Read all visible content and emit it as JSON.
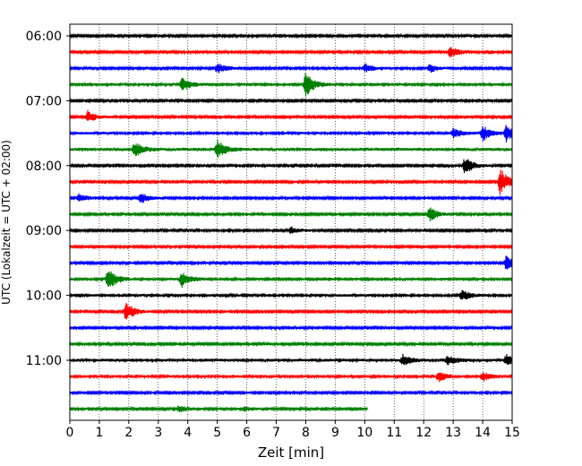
{
  "chart_data": {
    "type": "line",
    "xlabel": "Zeit  [min]",
    "ylabel": "UTC (Lokalzeit = UTC + 02:00)",
    "xlim": [
      0,
      15
    ],
    "x_ticks": [
      "0",
      "1",
      "2",
      "3",
      "4",
      "5",
      "6",
      "7",
      "8",
      "9",
      "10",
      "11",
      "12",
      "13",
      "14",
      "15"
    ],
    "y_tick_labels": [
      "06:00",
      "07:00",
      "08:00",
      "09:00",
      "10:00",
      "11:00"
    ],
    "grid": "vertical dotted at every minute",
    "trace_interval_min": 15,
    "colors": [
      "#000000",
      "#ff0000",
      "#0000ff",
      "#008000"
    ],
    "traces": [
      {
        "start": "06:00",
        "color": "#000000",
        "end_min": 15,
        "amp": 0.12,
        "events": []
      },
      {
        "start": "06:15",
        "color": "#ff0000",
        "end_min": 15,
        "amp": 0.12,
        "events": [
          {
            "t": 12.9,
            "a": 0.7
          }
        ]
      },
      {
        "start": "06:30",
        "color": "#0000ff",
        "end_min": 15,
        "amp": 0.12,
        "events": [
          {
            "t": 5.0,
            "a": 0.6
          },
          {
            "t": 10.0,
            "a": 0.5
          },
          {
            "t": 12.2,
            "a": 0.5
          }
        ]
      },
      {
        "start": "06:45",
        "color": "#008000",
        "end_min": 15,
        "amp": 0.14,
        "events": [
          {
            "t": 3.8,
            "a": 0.8
          },
          {
            "t": 8.0,
            "a": 1.4
          }
        ]
      },
      {
        "start": "07:00",
        "color": "#000000",
        "end_min": 15,
        "amp": 0.12,
        "events": []
      },
      {
        "start": "07:15",
        "color": "#ff0000",
        "end_min": 15,
        "amp": 0.12,
        "events": [
          {
            "t": 0.6,
            "a": 0.7
          }
        ]
      },
      {
        "start": "07:30",
        "color": "#0000ff",
        "end_min": 15,
        "amp": 0.14,
        "events": [
          {
            "t": 13.0,
            "a": 0.6
          },
          {
            "t": 14.0,
            "a": 0.9
          },
          {
            "t": 14.8,
            "a": 1.0
          }
        ]
      },
      {
        "start": "07:45",
        "color": "#008000",
        "end_min": 15,
        "amp": 0.18,
        "events": [
          {
            "t": 2.2,
            "a": 0.8
          },
          {
            "t": 5.0,
            "a": 1.0
          }
        ]
      },
      {
        "start": "08:00",
        "color": "#000000",
        "end_min": 15,
        "amp": 0.12,
        "events": [
          {
            "t": 13.4,
            "a": 1.0
          }
        ]
      },
      {
        "start": "08:15",
        "color": "#ff0000",
        "end_min": 15,
        "amp": 0.12,
        "events": [
          {
            "t": 14.6,
            "a": 1.6
          }
        ]
      },
      {
        "start": "08:30",
        "color": "#0000ff",
        "end_min": 15,
        "amp": 0.12,
        "events": [
          {
            "t": 0.3,
            "a": 0.5
          },
          {
            "t": 2.4,
            "a": 0.6
          }
        ]
      },
      {
        "start": "08:45",
        "color": "#008000",
        "end_min": 15,
        "amp": 0.12,
        "events": [
          {
            "t": 12.2,
            "a": 0.8
          }
        ]
      },
      {
        "start": "09:00",
        "color": "#000000",
        "end_min": 15,
        "amp": 0.12,
        "events": [
          {
            "t": 7.5,
            "a": 0.4
          }
        ]
      },
      {
        "start": "09:15",
        "color": "#ff0000",
        "end_min": 15,
        "amp": 0.12,
        "events": []
      },
      {
        "start": "09:30",
        "color": "#0000ff",
        "end_min": 15,
        "amp": 0.12,
        "events": [
          {
            "t": 14.8,
            "a": 0.8
          }
        ]
      },
      {
        "start": "09:45",
        "color": "#008000",
        "end_min": 15,
        "amp": 0.14,
        "events": [
          {
            "t": 1.3,
            "a": 1.3
          },
          {
            "t": 3.8,
            "a": 0.9
          }
        ]
      },
      {
        "start": "10:00",
        "color": "#000000",
        "end_min": 15,
        "amp": 0.14,
        "events": [
          {
            "t": 13.3,
            "a": 0.6
          }
        ]
      },
      {
        "start": "10:15",
        "color": "#ff0000",
        "end_min": 15,
        "amp": 0.12,
        "events": [
          {
            "t": 1.9,
            "a": 1.1
          }
        ]
      },
      {
        "start": "10:30",
        "color": "#0000ff",
        "end_min": 15,
        "amp": 0.12,
        "events": []
      },
      {
        "start": "10:45",
        "color": "#008000",
        "end_min": 15,
        "amp": 0.12,
        "events": []
      },
      {
        "start": "11:00",
        "color": "#000000",
        "end_min": 15,
        "amp": 0.16,
        "events": [
          {
            "t": 11.3,
            "a": 0.6
          },
          {
            "t": 12.8,
            "a": 0.5
          },
          {
            "t": 14.8,
            "a": 0.6
          }
        ]
      },
      {
        "start": "11:15",
        "color": "#ff0000",
        "end_min": 15,
        "amp": 0.14,
        "events": [
          {
            "t": 12.5,
            "a": 0.6
          },
          {
            "t": 14.0,
            "a": 0.5
          }
        ]
      },
      {
        "start": "11:30",
        "color": "#0000ff",
        "end_min": 15,
        "amp": 0.12,
        "events": []
      },
      {
        "start": "11:45",
        "color": "#008000",
        "end_min": 10.1,
        "amp": 0.12,
        "events": [
          {
            "t": 3.7,
            "a": 0.4
          },
          {
            "t": 5.9,
            "a": 0.3
          }
        ]
      }
    ]
  }
}
